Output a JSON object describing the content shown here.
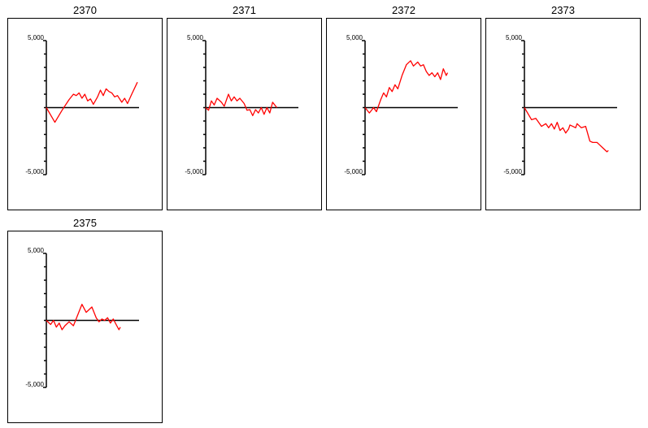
{
  "chart_data": [
    {
      "type": "line",
      "title": "2370",
      "ylim": [
        -5000,
        5000
      ],
      "yticks": [
        5000,
        -5000
      ],
      "ytick_labels": [
        "5,000",
        "-5,000"
      ],
      "line_color": "#ff0000",
      "axis_color": "#000000",
      "points": [
        [
          0,
          0
        ],
        [
          6,
          -1100
        ],
        [
          11,
          -200
        ],
        [
          16,
          600
        ],
        [
          19,
          1000
        ],
        [
          21,
          900
        ],
        [
          23,
          1100
        ],
        [
          25,
          700
        ],
        [
          27,
          1000
        ],
        [
          29,
          500
        ],
        [
          31,
          650
        ],
        [
          33,
          250
        ],
        [
          36,
          800
        ],
        [
          38,
          1300
        ],
        [
          40,
          900
        ],
        [
          42,
          1400
        ],
        [
          44,
          1200
        ],
        [
          46,
          1100
        ],
        [
          48,
          800
        ],
        [
          50,
          900
        ],
        [
          53,
          400
        ],
        [
          55,
          700
        ],
        [
          57,
          300
        ],
        [
          60,
          1000
        ],
        [
          64,
          1900
        ]
      ]
    },
    {
      "type": "line",
      "title": "2371",
      "ylim": [
        -5000,
        5000
      ],
      "yticks": [
        5000,
        -5000
      ],
      "ytick_labels": [
        "5,000",
        "-5,000"
      ],
      "line_color": "#ff0000",
      "axis_color": "#000000",
      "points": [
        [
          0,
          0
        ],
        [
          2,
          -200
        ],
        [
          4,
          500
        ],
        [
          6,
          200
        ],
        [
          8,
          700
        ],
        [
          11,
          400
        ],
        [
          13,
          100
        ],
        [
          16,
          1000
        ],
        [
          18,
          500
        ],
        [
          20,
          800
        ],
        [
          22,
          500
        ],
        [
          24,
          700
        ],
        [
          27,
          300
        ],
        [
          29,
          -200
        ],
        [
          31,
          -150
        ],
        [
          33,
          -600
        ],
        [
          35,
          -150
        ],
        [
          37,
          -400
        ],
        [
          39,
          0
        ],
        [
          41,
          -500
        ],
        [
          43,
          0
        ],
        [
          45,
          -400
        ],
        [
          47,
          400
        ],
        [
          50,
          0
        ]
      ]
    },
    {
      "type": "line",
      "title": "2372",
      "ylim": [
        -5000,
        5000
      ],
      "yticks": [
        5000,
        -5000
      ],
      "ytick_labels": [
        "5,000",
        "-5,000"
      ],
      "line_color": "#ff0000",
      "axis_color": "#000000",
      "points": [
        [
          0,
          0
        ],
        [
          3,
          -400
        ],
        [
          6,
          0
        ],
        [
          8,
          -300
        ],
        [
          11,
          600
        ],
        [
          13,
          1100
        ],
        [
          15,
          800
        ],
        [
          17,
          1500
        ],
        [
          19,
          1200
        ],
        [
          21,
          1700
        ],
        [
          23,
          1400
        ],
        [
          26,
          2400
        ],
        [
          29,
          3200
        ],
        [
          32,
          3500
        ],
        [
          34,
          3100
        ],
        [
          37,
          3400
        ],
        [
          39,
          3100
        ],
        [
          41,
          3200
        ],
        [
          43,
          2700
        ],
        [
          45,
          2400
        ],
        [
          47,
          2600
        ],
        [
          49,
          2300
        ],
        [
          51,
          2600
        ],
        [
          53,
          2100
        ],
        [
          55,
          2900
        ],
        [
          57,
          2400
        ],
        [
          58,
          2600
        ]
      ]
    },
    {
      "type": "line",
      "title": "2373",
      "ylim": [
        -5000,
        5000
      ],
      "yticks": [
        5000,
        -5000
      ],
      "ytick_labels": [
        "5,000",
        "-5,000"
      ],
      "line_color": "#ff0000",
      "axis_color": "#000000",
      "points": [
        [
          0,
          0
        ],
        [
          5,
          -900
        ],
        [
          8,
          -800
        ],
        [
          10,
          -1100
        ],
        [
          12,
          -1400
        ],
        [
          15,
          -1200
        ],
        [
          17,
          -1500
        ],
        [
          19,
          -1200
        ],
        [
          21,
          -1600
        ],
        [
          23,
          -1100
        ],
        [
          25,
          -1700
        ],
        [
          27,
          -1500
        ],
        [
          29,
          -1900
        ],
        [
          31,
          -1600
        ],
        [
          32,
          -1300
        ],
        [
          34,
          -1400
        ],
        [
          36,
          -1500
        ],
        [
          37,
          -1200
        ],
        [
          40,
          -1500
        ],
        [
          43,
          -1400
        ],
        [
          46,
          -2500
        ],
        [
          48,
          -2600
        ],
        [
          51,
          -2600
        ],
        [
          53,
          -2800
        ],
        [
          55,
          -3000
        ],
        [
          58,
          -3300
        ],
        [
          59,
          -3200
        ]
      ]
    },
    {
      "type": "line",
      "title": "2375",
      "ylim": [
        -5000,
        5000
      ],
      "yticks": [
        5000,
        -5000
      ],
      "ytick_labels": [
        "5,000",
        "-5,000"
      ],
      "line_color": "#ff0000",
      "axis_color": "#000000",
      "points": [
        [
          0,
          0
        ],
        [
          3,
          -300
        ],
        [
          5,
          0
        ],
        [
          7,
          -500
        ],
        [
          9,
          -200
        ],
        [
          11,
          -700
        ],
        [
          13,
          -400
        ],
        [
          16,
          -100
        ],
        [
          19,
          -400
        ],
        [
          25,
          1200
        ],
        [
          28,
          600
        ],
        [
          32,
          1000
        ],
        [
          35,
          200
        ],
        [
          37,
          -100
        ],
        [
          39,
          100
        ],
        [
          41,
          0
        ],
        [
          43,
          200
        ],
        [
          45,
          -200
        ],
        [
          47,
          100
        ],
        [
          49,
          -300
        ],
        [
          51,
          -700
        ],
        [
          52,
          -500
        ]
      ]
    }
  ]
}
